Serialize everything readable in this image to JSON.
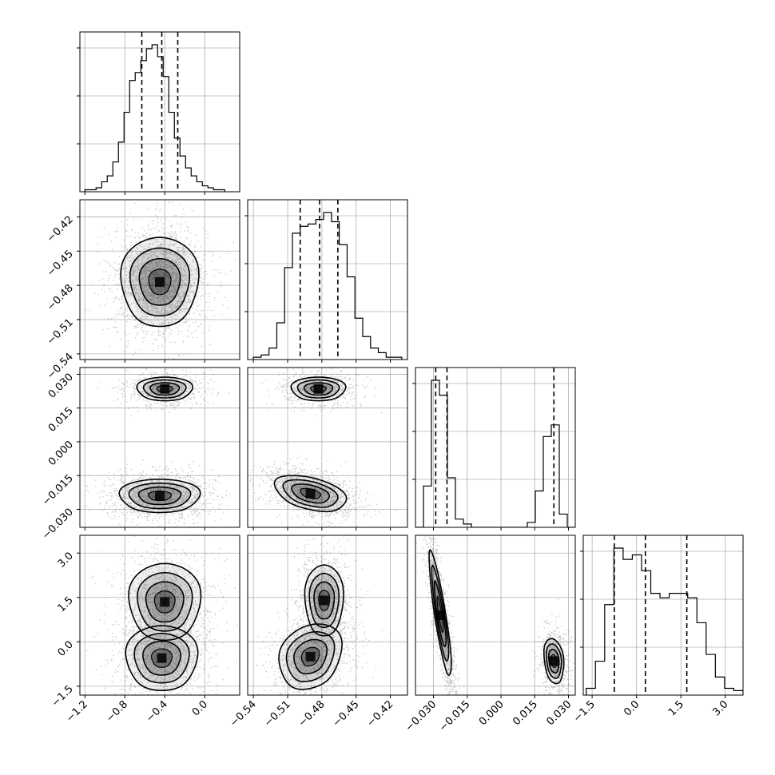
{
  "chart_data": {
    "type": "corner",
    "parameters": 4,
    "grid": true,
    "colors": {
      "ink": "#000000",
      "grid": "#b0b0b0",
      "cloud": "#000000",
      "fill": "#000000"
    },
    "ranges": [
      [
        -1.25,
        0.35
      ],
      [
        -0.545,
        -0.405
      ],
      [
        -0.038,
        0.033
      ],
      [
        -1.8,
        3.6
      ]
    ],
    "ticks": [
      [
        -1.2,
        -0.8,
        -0.4,
        0.0
      ],
      [
        -0.54,
        -0.51,
        -0.48,
        -0.45,
        -0.42
      ],
      [
        -0.03,
        -0.015,
        0.0,
        0.015,
        0.03
      ],
      [
        -1.5,
        0.0,
        1.5,
        3.0
      ]
    ],
    "tick_labels": [
      [
        "−1.2",
        "−0.8",
        "−0.4",
        "0.0"
      ],
      [
        "−0.54",
        "−0.51",
        "−0.48",
        "−0.45",
        "−0.42"
      ],
      [
        "−0.030",
        "−0.015",
        "0.000",
        "0.015",
        "0.030"
      ],
      [
        "−1.5",
        "0.0",
        "1.5",
        "3.0"
      ]
    ],
    "quantiles": [
      [
        -0.63,
        -0.43,
        -0.27
      ],
      [
        -0.499,
        -0.482,
        -0.466
      ],
      [
        -0.029,
        -0.024,
        0.0235
      ],
      [
        -0.75,
        0.3,
        1.7
      ]
    ],
    "histograms": [
      {
        "edges": [
          -1.2,
          0.2
        ],
        "counts": [
          1,
          1,
          2,
          5,
          8,
          15,
          25,
          40,
          56,
          60,
          66,
          72,
          74,
          68,
          58,
          40,
          27,
          18,
          12,
          8,
          5,
          3,
          2,
          1,
          1
        ]
      },
      {
        "edges": [
          -0.54,
          -0.41
        ],
        "counts": [
          1,
          2,
          5,
          16,
          40,
          55,
          58,
          59,
          61,
          64,
          60,
          50,
          36,
          18,
          10,
          5,
          3,
          1,
          1
        ]
      },
      {
        "edges": [
          -0.038,
          0.033
        ],
        "counts": [
          0,
          25,
          89,
          80,
          30,
          5,
          2,
          0,
          0,
          0,
          0,
          0,
          0,
          0,
          3,
          22,
          55,
          62,
          8,
          0
        ]
      },
      {
        "edges": [
          -1.7,
          3.6
        ],
        "counts": [
          3,
          15,
          40,
          65,
          60,
          62,
          55,
          45,
          43,
          45,
          45,
          43,
          32,
          18,
          8,
          3,
          2
        ]
      }
    ],
    "modes": [
      {
        "i": 1,
        "j": 0,
        "c": [
          {
            "x": -0.45,
            "y": -0.477,
            "w": 1,
            "ax": 0.16,
            "ay": 0.017,
            "r": 0
          }
        ]
      },
      {
        "i": 2,
        "j": 0,
        "c": [
          {
            "x": -0.4,
            "y": 0.0235,
            "w": 0.3,
            "ax": 0.14,
            "ay": 0.0028,
            "r": 0
          },
          {
            "x": -0.45,
            "y": -0.024,
            "w": 0.7,
            "ax": 0.18,
            "ay": 0.0035,
            "r": 0
          }
        ]
      },
      {
        "i": 2,
        "j": 1,
        "c": [
          {
            "x": -0.483,
            "y": 0.0235,
            "w": 0.3,
            "ax": 0.012,
            "ay": 0.0028,
            "r": 0
          },
          {
            "x": -0.49,
            "y": -0.023,
            "w": 0.7,
            "ax": 0.014,
            "ay": 0.0037,
            "r": -0.4
          }
        ]
      },
      {
        "i": 3,
        "j": 0,
        "c": [
          {
            "x": -0.43,
            "y": -0.55,
            "w": 0.5,
            "ax": 0.17,
            "ay": 0.55,
            "r": 0
          },
          {
            "x": -0.4,
            "y": 1.35,
            "w": 0.5,
            "ax": 0.17,
            "ay": 0.65,
            "r": 0
          }
        ]
      },
      {
        "i": 3,
        "j": 1,
        "c": [
          {
            "x": -0.49,
            "y": -0.5,
            "w": 0.5,
            "ax": 0.013,
            "ay": 0.55,
            "r": 0.2
          },
          {
            "x": -0.478,
            "y": 1.4,
            "w": 0.5,
            "ax": 0.008,
            "ay": 0.6,
            "r": 0
          }
        ]
      },
      {
        "i": 3,
        "j": 2,
        "c": [
          {
            "x": -0.027,
            "y": 0.9,
            "w": 0.68,
            "ax": 0.0022,
            "ay": 0.95,
            "r": -0.85
          },
          {
            "x": 0.0235,
            "y": -0.65,
            "w": 0.32,
            "ax": 0.0022,
            "ay": 0.4,
            "r": -0.2
          }
        ]
      }
    ]
  }
}
